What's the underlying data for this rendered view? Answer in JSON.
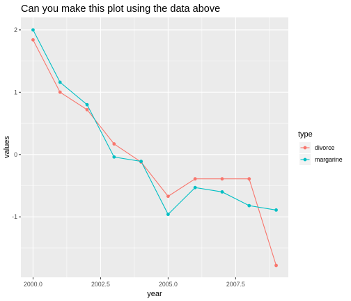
{
  "chart_data": {
    "type": "line",
    "title": "Can you make this plot using the data above",
    "xlabel": "year",
    "ylabel": "values",
    "x": [
      2000,
      2001,
      2002,
      2003,
      2004,
      2005,
      2006,
      2007,
      2008,
      2009
    ],
    "xticks": [
      2000.0,
      2002.5,
      2005.0,
      2007.5
    ],
    "xtick_labels": [
      "2000.0",
      "2002.5",
      "2005.0",
      "2007.5"
    ],
    "yticks": [
      -1,
      0,
      1,
      2
    ],
    "ytick_labels": [
      "-1",
      "0",
      "1",
      "2"
    ],
    "xlim": [
      1999.55,
      2009.45
    ],
    "ylim": [
      -1.97,
      2.2
    ],
    "grid": true,
    "legend": {
      "title": "type",
      "placement": "right"
    },
    "series": [
      {
        "name": "divorce",
        "color": "#F8766D",
        "values": [
          1.84,
          1.0,
          0.72,
          0.17,
          -0.12,
          -0.67,
          -0.39,
          -0.39,
          -0.39,
          -1.78
        ]
      },
      {
        "name": "margarine",
        "color": "#00BFC4",
        "values": [
          2.0,
          1.16,
          0.8,
          -0.04,
          -0.11,
          -0.96,
          -0.53,
          -0.6,
          -0.82,
          -0.89
        ]
      }
    ]
  }
}
